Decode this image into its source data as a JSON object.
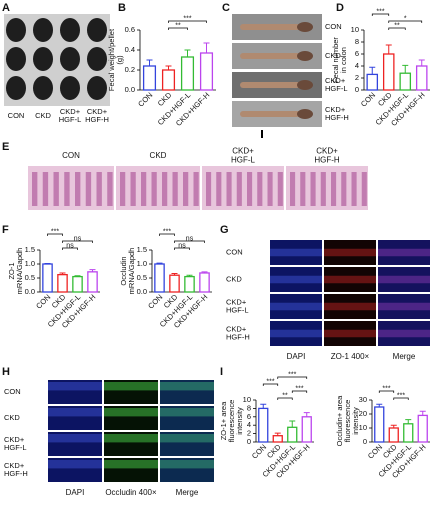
{
  "panels": {
    "letters": [
      "A",
      "B",
      "C",
      "D",
      "E",
      "F",
      "G",
      "H",
      "I"
    ]
  },
  "photo_labels": {
    "A": [
      [
        "CON"
      ],
      [
        "CKD"
      ],
      [
        "CKD+",
        "HGF-L"
      ],
      [
        "CKD+",
        "HGF-H"
      ]
    ],
    "C": [
      [
        "CON"
      ],
      [
        "CKD"
      ],
      [
        "CKD+",
        "HGF-L"
      ],
      [
        "CKD+",
        "HGF-H"
      ]
    ],
    "E": [
      [
        "CON"
      ],
      [
        "CKD"
      ],
      [
        "CKD+",
        "HGF-L"
      ],
      [
        "CKD+",
        "HGF-H"
      ]
    ]
  },
  "staining": {
    "G": {
      "rows": [
        [
          "CON"
        ],
        [
          "CKD"
        ],
        [
          "CKD+",
          "HGF-L"
        ],
        [
          "CKD+",
          "HGF-H"
        ]
      ],
      "columns": [
        "DAPI",
        "ZO-1 400×",
        "Merge"
      ]
    },
    "H": {
      "rows": [
        [
          "CON"
        ],
        [
          "CKD"
        ],
        [
          "CKD+",
          "HGF-L"
        ],
        [
          "CKD+",
          "HGF-H"
        ]
      ],
      "columns": [
        "DAPI",
        "Occludin 400×",
        "Merge"
      ]
    }
  },
  "chart_data": [
    {
      "type": "bar",
      "ylabel": [
        "Fecal weight/pellet",
        "(g)"
      ],
      "categories": [
        "CON",
        "CKD",
        "CKD+HGF-L",
        "CKD+HGF-H"
      ],
      "values": [
        0.24,
        0.2,
        0.33,
        0.37
      ],
      "errors": [
        0.06,
        0.04,
        0.07,
        0.1
      ],
      "colors": [
        "#3344dd",
        "#ee2222",
        "#33bb33",
        "#bb44ee"
      ],
      "ylim": [
        0,
        0.6
      ],
      "yticks": [
        {
          "value": 0,
          "label": "0.0"
        },
        0.2,
        0.4,
        0.6
      ],
      "annotations": [
        "***",
        "**"
      ]
    },
    {
      "type": "bar",
      "ylabel": [
        "Fecal number",
        "in colon"
      ],
      "categories": [
        "CON",
        "CKD",
        "CKD+HGF-L",
        "CKD+HGF-H"
      ],
      "values": [
        2.6,
        6,
        2.8,
        4
      ],
      "errors": [
        1.2,
        1.5,
        1.3,
        1
      ],
      "colors": [
        "#3344dd",
        "#ee2222",
        "#33bb33",
        "#bb44ee"
      ],
      "ylim": [
        0,
        10
      ],
      "yticks": [
        0,
        2,
        4,
        6,
        8,
        10
      ],
      "annotations": [
        "***",
        "**",
        "*"
      ]
    },
    {
      "type": "bar",
      "ylabel": [
        "ZO-1",
        "mRNA/Gapdh"
      ],
      "categories": [
        "CON",
        "CKD",
        "CKD+HGF-L",
        "CKD+HGF-H"
      ],
      "values": [
        1,
        0.62,
        0.55,
        0.72
      ],
      "errors": [
        0.02,
        0.06,
        0.03,
        0.08
      ],
      "colors": [
        "#3344dd",
        "#ee2222",
        "#33bb33",
        "#bb44ee"
      ],
      "ylim": [
        0,
        1.5
      ],
      "yticks": [
        {
          "value": 0,
          "label": "0.0"
        },
        0.5,
        {
          "value": 1,
          "label": "1.0"
        },
        1.5
      ],
      "annotations": [
        "***",
        "ns",
        "ns"
      ]
    },
    {
      "type": "bar",
      "ylabel": [
        "Occludin",
        "mRNA/Gapdh"
      ],
      "categories": [
        "CON",
        "CKD",
        "CKD+HGF-L",
        "CKD+HGF-H"
      ],
      "values": [
        1,
        0.6,
        0.55,
        0.68
      ],
      "errors": [
        0.03,
        0.06,
        0.05,
        0.04
      ],
      "colors": [
        "#3344dd",
        "#ee2222",
        "#33bb33",
        "#bb44ee"
      ],
      "ylim": [
        0,
        1.5
      ],
      "yticks": [
        {
          "value": 0,
          "label": "0.0"
        },
        0.5,
        {
          "value": 1,
          "label": "1.0"
        },
        1.5
      ],
      "annotations": [
        "***",
        "ns",
        "ns"
      ]
    },
    {
      "type": "bar",
      "ylabel": [
        "ZO-1+ area",
        "fluorescence",
        "intensity"
      ],
      "categories": [
        "CON",
        "CKD",
        "CKD+HGF-L",
        "CKD+HGF-H"
      ],
      "values": [
        8,
        1.5,
        3.5,
        6
      ],
      "errors": [
        1,
        0.6,
        1.5,
        1
      ],
      "colors": [
        "#3344dd",
        "#ee2222",
        "#33bb33",
        "#bb44ee"
      ],
      "ylim": [
        0,
        10
      ],
      "yticks": [
        0,
        2,
        4,
        6,
        8,
        10
      ],
      "annotations": [
        "***",
        "**",
        "***",
        "***"
      ]
    },
    {
      "type": "bar",
      "ylabel": [
        "Occludin+ area",
        "fluorescence",
        "intensity"
      ],
      "categories": [
        "CON",
        "CKD",
        "CKD+HGF-L",
        "CKD+HGF-H"
      ],
      "values": [
        25,
        10,
        13,
        19
      ],
      "errors": [
        2,
        2,
        3,
        3
      ],
      "colors": [
        "#3344dd",
        "#ee2222",
        "#33bb33",
        "#bb44ee"
      ],
      "ylim": [
        0,
        30
      ],
      "yticks": [
        0,
        10,
        20,
        30
      ],
      "annotations": [
        "***",
        "***"
      ]
    }
  ]
}
